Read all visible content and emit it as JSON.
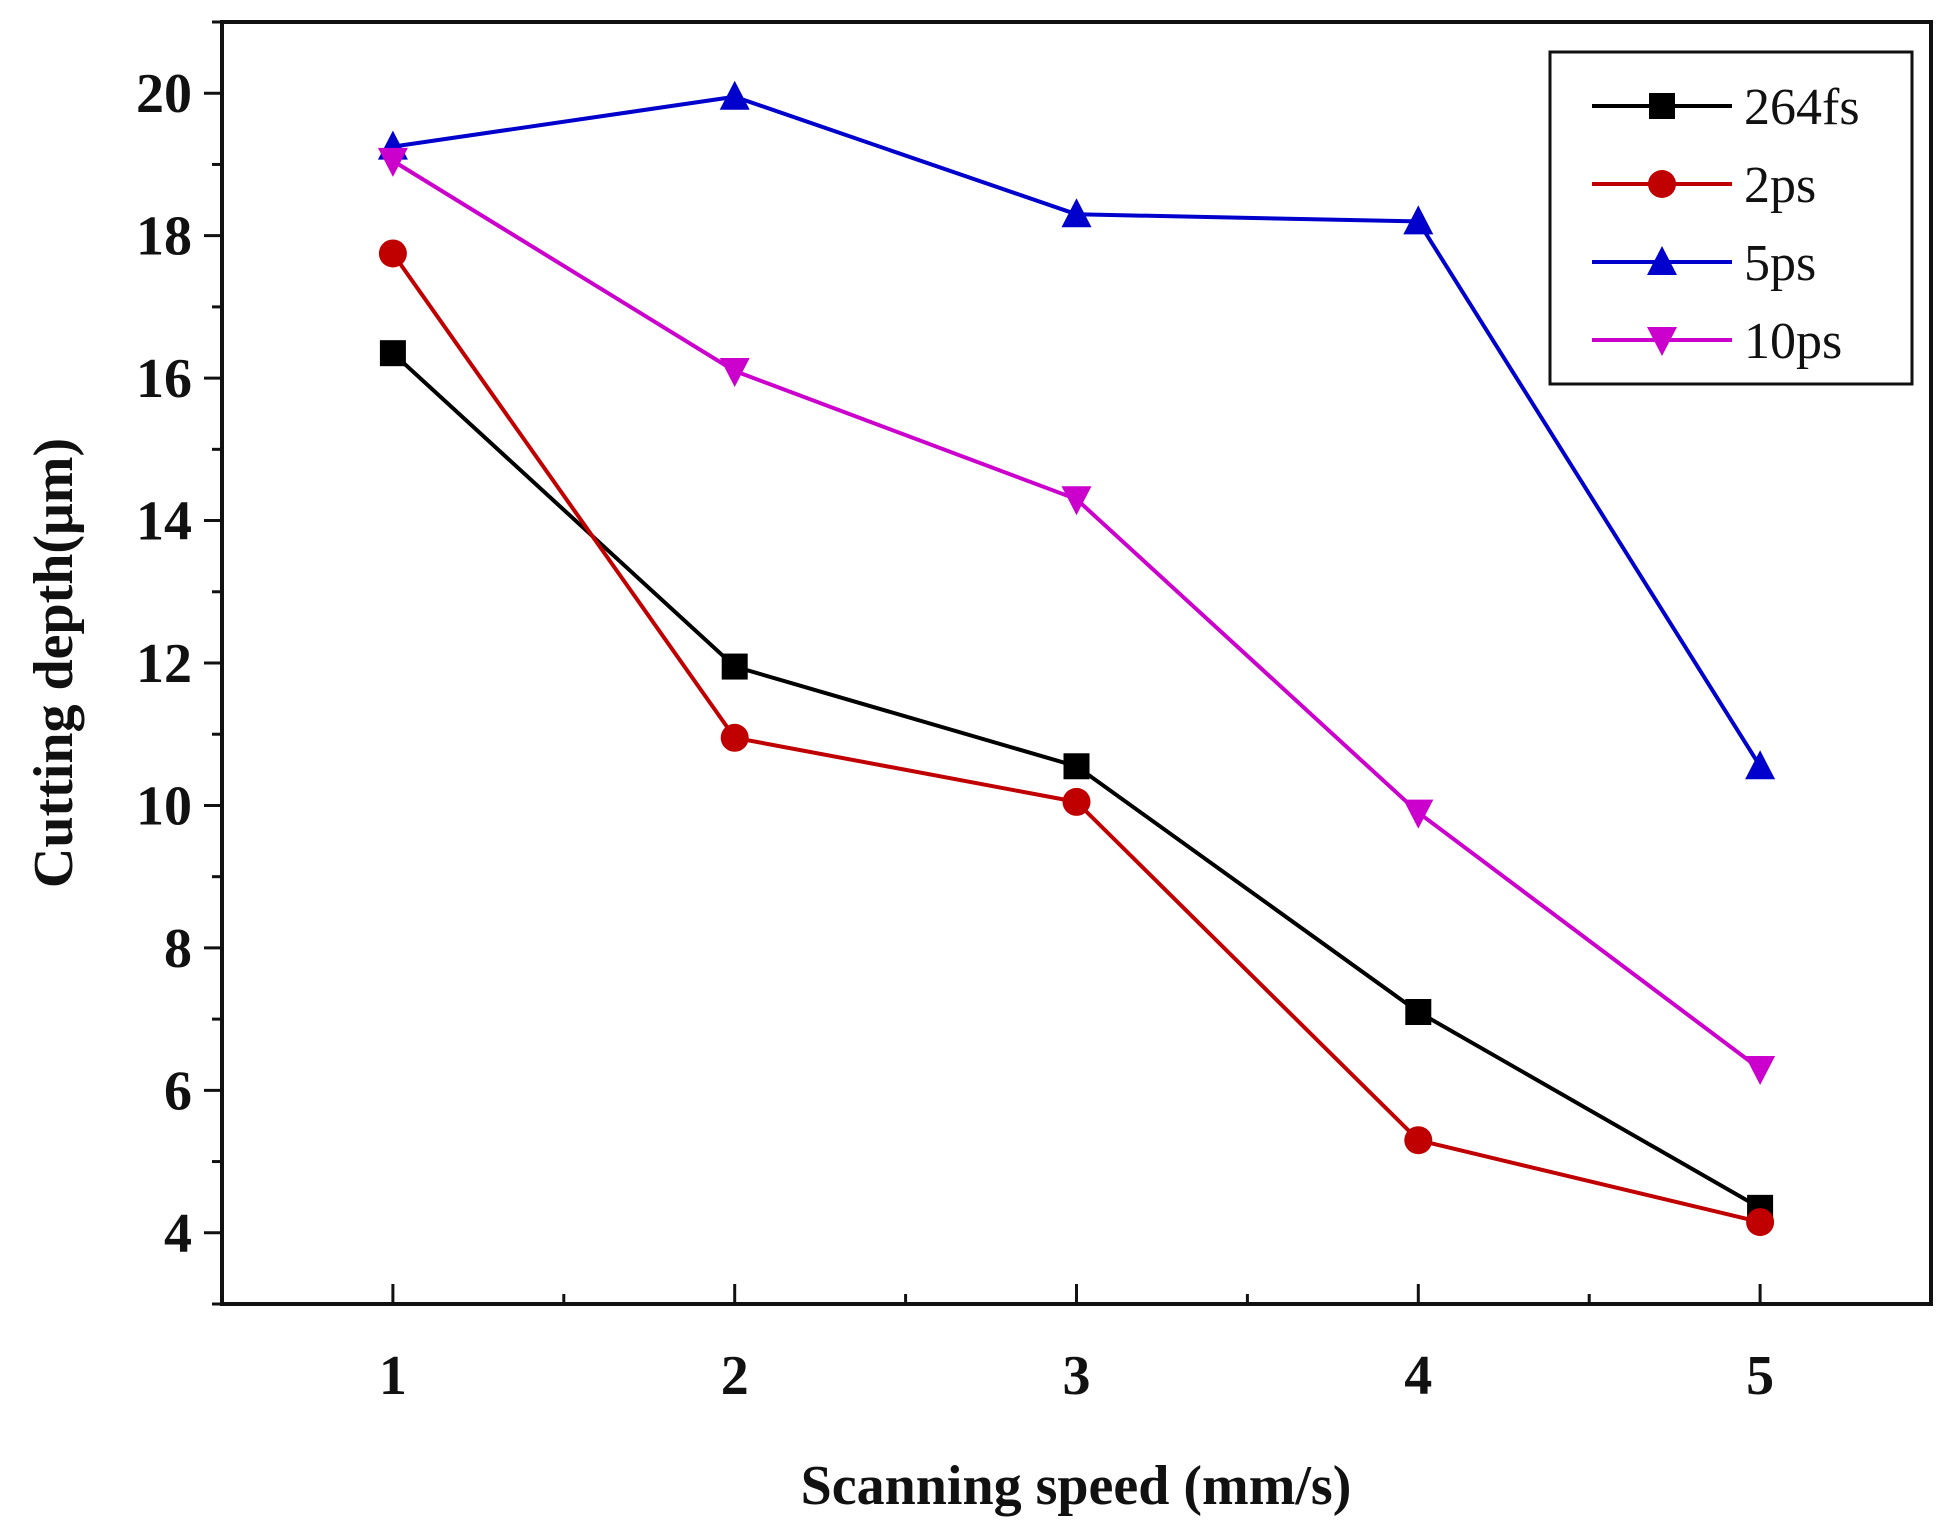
{
  "chart_data": {
    "type": "line",
    "title": "",
    "xlabel": "Scanning speed (mm/s)",
    "ylabel": "Cutting depth(μm)",
    "x": [
      1,
      2,
      3,
      4,
      5
    ],
    "x_tick_labels": [
      "1",
      "2",
      "3",
      "4",
      "5"
    ],
    "xlim": [
      0.5,
      5.5
    ],
    "ylim": [
      3,
      21
    ],
    "y_ticks": [
      4,
      6,
      8,
      10,
      12,
      14,
      16,
      18,
      20
    ],
    "y_tick_labels": [
      "4",
      "6",
      "8",
      "10",
      "12",
      "14",
      "16",
      "18",
      "20"
    ],
    "grid": false,
    "legend_position": "top-right",
    "series": [
      {
        "name": "264fs",
        "color": "#000000",
        "marker": "square",
        "values": [
          16.35,
          11.95,
          10.55,
          7.1,
          4.35
        ]
      },
      {
        "name": "2ps",
        "color": "#c00000",
        "marker": "circle",
        "values": [
          17.75,
          10.95,
          10.05,
          5.3,
          4.15
        ]
      },
      {
        "name": "5ps",
        "color": "#0000cc",
        "marker": "triangle-up",
        "values": [
          19.25,
          19.95,
          18.3,
          18.2,
          10.55
        ]
      },
      {
        "name": "10ps",
        "color": "#cc00cc",
        "marker": "triangle-down",
        "values": [
          19.05,
          16.1,
          14.3,
          9.9,
          6.3
        ]
      }
    ]
  }
}
